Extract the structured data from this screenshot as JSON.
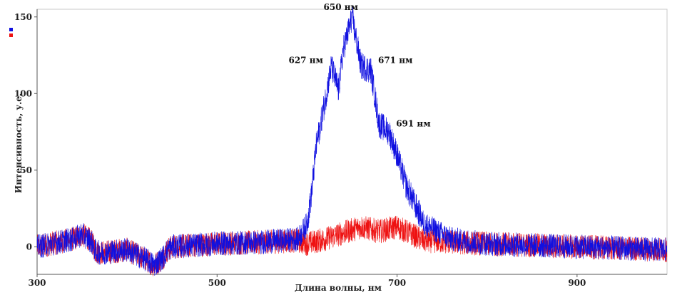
{
  "chart_data": {
    "type": "line",
    "xlabel": "Длина волны, нм",
    "ylabel": "Интенсивность, у.е.",
    "xlim": [
      300,
      1000
    ],
    "ylim": [
      -18,
      155
    ],
    "x_ticks": [
      "300",
      "500",
      "700",
      "900"
    ],
    "y_ticks": [
      "0",
      "50",
      "100",
      "150"
    ],
    "grid": false,
    "legend": "top-left markers only",
    "series": [
      {
        "color": "#1010e0",
        "x": [
          300,
          340,
          350,
          360,
          365,
          370,
          400,
          420,
          430,
          440,
          445,
          450,
          500,
          550,
          590,
          600,
          605,
          610,
          620,
          627,
          635,
          640,
          650,
          660,
          671,
          680,
          691,
          700,
          710,
          730,
          760,
          800,
          900,
          1000
        ],
        "y": [
          0,
          5,
          8,
          4,
          -3,
          -4,
          -2,
          -8,
          -12,
          -7,
          -2,
          0,
          2,
          3,
          5,
          15,
          35,
          65,
          95,
          118,
          102,
          128,
          150,
          118,
          115,
          80,
          75,
          60,
          40,
          15,
          5,
          2,
          0,
          -2
        ]
      },
      {
        "color": "#ee1111",
        "x": [
          300,
          340,
          350,
          360,
          365,
          370,
          400,
          420,
          430,
          440,
          445,
          450,
          500,
          550,
          590,
          600,
          620,
          660,
          680,
          700,
          710,
          730,
          760,
          800,
          900,
          1000
        ],
        "y": [
          0,
          5,
          8,
          4,
          -3,
          -4,
          -2,
          -8,
          -12,
          -7,
          -2,
          0,
          2,
          3,
          4,
          2,
          5,
          13,
          10,
          13,
          10,
          4,
          3,
          2,
          0,
          -2
        ]
      }
    ],
    "annotations": [
      {
        "text": "650 нм",
        "x": 650,
        "y": 150
      },
      {
        "text": "627 нм",
        "x": 627,
        "y": 118
      },
      {
        "text": "671 нм",
        "x": 671,
        "y": 118
      },
      {
        "text": "691 нм",
        "x": 691,
        "y": 77
      }
    ],
    "legend_colors": [
      "#1010e0",
      "#ee1111"
    ]
  }
}
